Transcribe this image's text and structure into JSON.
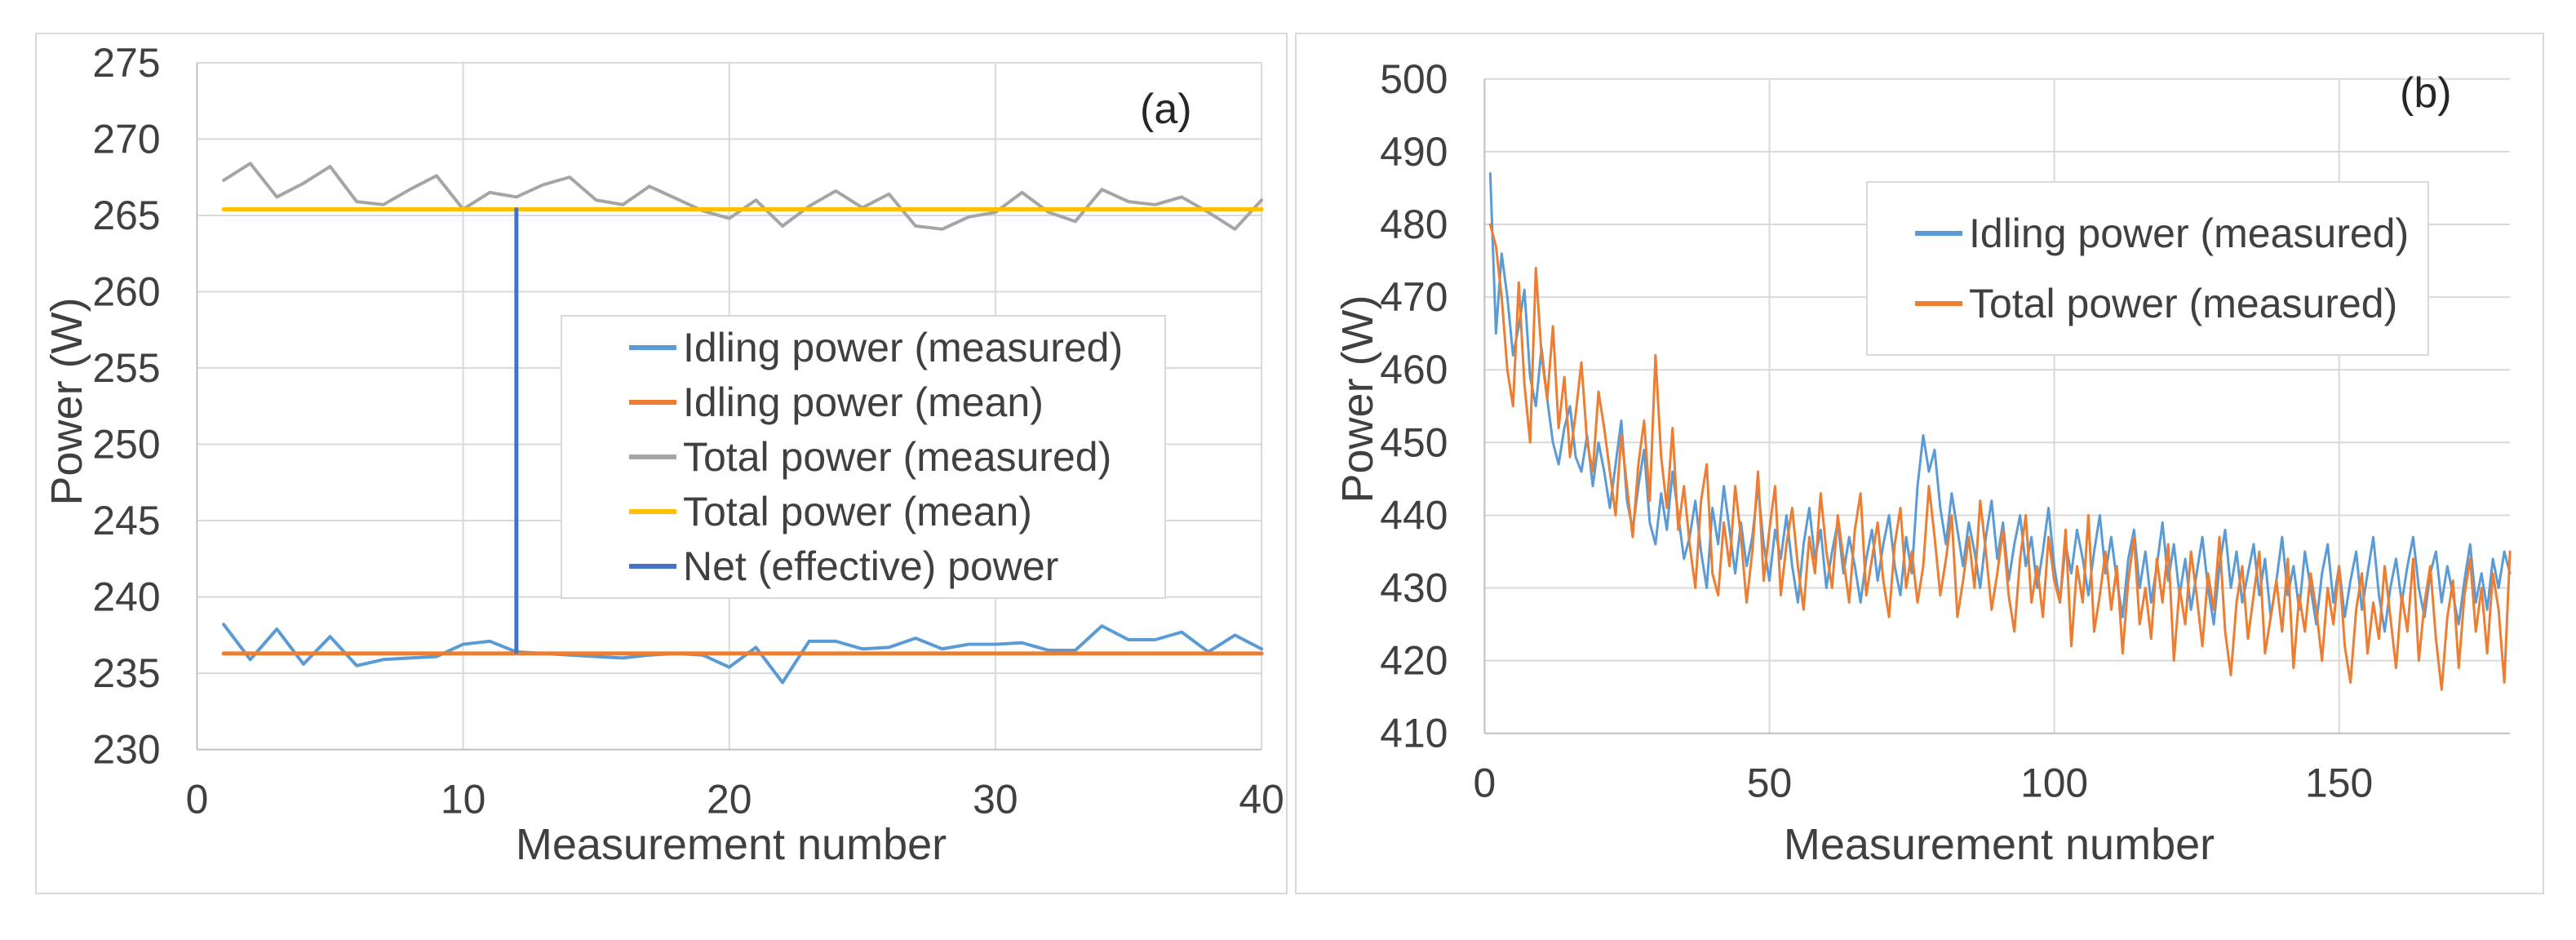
{
  "figure_title": "",
  "chart_data": [
    {
      "id": "a",
      "type": "line",
      "panel_label": "(a)",
      "title": "",
      "xlabel": "Measurement number",
      "ylabel": "Power (W)",
      "xlim": [
        0,
        40
      ],
      "ylim": [
        230,
        275
      ],
      "xticks": [
        0,
        10,
        20,
        30,
        40
      ],
      "yticks": [
        230,
        235,
        240,
        245,
        250,
        255,
        260,
        265,
        270,
        275
      ],
      "grid": true,
      "legend_position": "inside-center",
      "x_start": 1,
      "series": [
        {
          "name": "Idling power (measured)",
          "color": "#5B9BD5",
          "width": 4,
          "values": [
            238.2,
            235.9,
            237.9,
            235.6,
            237.4,
            235.5,
            235.9,
            236.0,
            236.1,
            236.9,
            237.1,
            236.4,
            236.3,
            236.2,
            236.1,
            236.0,
            236.2,
            236.3,
            236.2,
            235.4,
            236.7,
            234.4,
            237.1,
            237.1,
            236.6,
            236.7,
            237.3,
            236.6,
            236.9,
            236.9,
            237.0,
            236.5,
            236.5,
            238.1,
            237.2,
            237.2,
            237.7,
            236.4,
            237.5,
            236.6
          ]
        },
        {
          "name": "Idling power (mean)",
          "color": "#ED7D31",
          "width": 5,
          "constant": 236.3,
          "x_range": [
            1,
            40
          ]
        },
        {
          "name": "Total power (measured)",
          "color": "#A5A5A5",
          "width": 4,
          "values": [
            267.3,
            268.4,
            266.2,
            267.1,
            268.2,
            265.9,
            265.7,
            266.7,
            267.6,
            265.4,
            266.5,
            266.2,
            267.0,
            267.5,
            266.0,
            265.7,
            266.9,
            266.1,
            265.3,
            264.8,
            266.0,
            264.3,
            265.6,
            266.6,
            265.5,
            266.4,
            264.3,
            264.1,
            264.9,
            265.2,
            266.5,
            265.2,
            264.6,
            266.7,
            265.9,
            265.7,
            266.2,
            265.2,
            264.1,
            266.0
          ]
        },
        {
          "name": "Total power (mean)",
          "color": "#FFC000",
          "width": 5,
          "constant": 265.4,
          "x_range": [
            1,
            40
          ]
        },
        {
          "name": "Net (effective) power",
          "color": "#4472C4",
          "width": 5,
          "points": [
            [
              12,
              236.4
            ],
            [
              12,
              265.4
            ]
          ]
        }
      ]
    },
    {
      "id": "b",
      "type": "line",
      "panel_label": "(b)",
      "title": "",
      "xlabel": "Measurement number",
      "ylabel": "Power (W)",
      "xlim": [
        0,
        180
      ],
      "ylim": [
        410,
        500
      ],
      "xticks": [
        0,
        50,
        100,
        150
      ],
      "yticks": [
        410,
        420,
        430,
        440,
        450,
        460,
        470,
        480,
        490,
        500
      ],
      "grid": true,
      "legend_position": "inside-top-right",
      "x_start": 1,
      "series": [
        {
          "name": "Idling power (measured)",
          "color": "#5B9BD5",
          "width": 3,
          "values": [
            487,
            465,
            476,
            470,
            462,
            466,
            471,
            459,
            455,
            463,
            456,
            450,
            447,
            452,
            455,
            448,
            446,
            451,
            444,
            450,
            446,
            441,
            447,
            453,
            442,
            438,
            444,
            449,
            439,
            436,
            443,
            438,
            446,
            440,
            434,
            437,
            442,
            435,
            430,
            441,
            436,
            444,
            438,
            432,
            439,
            433,
            437,
            444,
            436,
            431,
            438,
            434,
            440,
            433,
            428,
            436,
            441,
            434,
            438,
            430,
            435,
            439,
            432,
            437,
            433,
            428,
            434,
            438,
            431,
            436,
            440,
            433,
            429,
            437,
            432,
            444,
            451,
            446,
            449,
            441,
            436,
            443,
            438,
            433,
            439,
            435,
            430,
            437,
            442,
            434,
            439,
            431,
            436,
            440,
            433,
            437,
            430,
            435,
            441,
            433,
            428,
            436,
            432,
            438,
            434,
            429,
            435,
            440,
            432,
            437,
            431,
            426,
            434,
            438,
            430,
            435,
            428,
            433,
            439,
            431,
            436,
            429,
            434,
            427,
            432,
            437,
            430,
            425,
            433,
            438,
            430,
            435,
            428,
            432,
            436,
            429,
            434,
            426,
            431,
            437,
            429,
            433,
            427,
            435,
            430,
            425,
            432,
            436,
            428,
            433,
            426,
            431,
            435,
            427,
            432,
            437,
            429,
            424,
            430,
            434,
            428,
            433,
            437,
            430,
            426,
            432,
            435,
            428,
            433,
            429,
            425,
            431,
            436,
            428,
            432,
            427,
            434,
            430,
            435,
            432
          ]
        },
        {
          "name": "Total power (measured)",
          "color": "#ED7D31",
          "width": 3,
          "values": [
            480,
            477,
            470,
            460,
            455,
            472,
            458,
            450,
            474,
            462,
            456,
            466,
            452,
            459,
            448,
            454,
            461,
            450,
            446,
            457,
            452,
            446,
            440,
            451,
            444,
            437,
            447,
            453,
            442,
            462,
            448,
            441,
            452,
            438,
            444,
            436,
            430,
            442,
            447,
            432,
            429,
            439,
            433,
            444,
            437,
            428,
            435,
            446,
            431,
            438,
            444,
            429,
            436,
            441,
            433,
            427,
            437,
            432,
            443,
            435,
            430,
            440,
            434,
            428,
            438,
            443,
            429,
            434,
            439,
            431,
            426,
            436,
            441,
            430,
            435,
            428,
            433,
            444,
            437,
            429,
            434,
            440,
            426,
            431,
            437,
            430,
            442,
            435,
            427,
            432,
            438,
            429,
            424,
            434,
            440,
            428,
            433,
            426,
            437,
            431,
            428,
            438,
            422,
            433,
            428,
            440,
            424,
            429,
            435,
            427,
            433,
            421,
            431,
            437,
            425,
            430,
            423,
            434,
            428,
            436,
            420,
            430,
            425,
            435,
            429,
            422,
            432,
            427,
            437,
            424,
            418,
            428,
            433,
            423,
            429,
            435,
            421,
            426,
            431,
            424,
            434,
            419,
            429,
            424,
            432,
            427,
            420,
            430,
            425,
            433,
            422,
            417,
            427,
            432,
            421,
            428,
            423,
            433,
            426,
            419,
            429,
            424,
            434,
            420,
            428,
            433,
            423,
            416,
            426,
            431,
            419,
            429,
            434,
            424,
            430,
            421,
            432,
            427,
            417,
            435
          ]
        }
      ]
    }
  ]
}
